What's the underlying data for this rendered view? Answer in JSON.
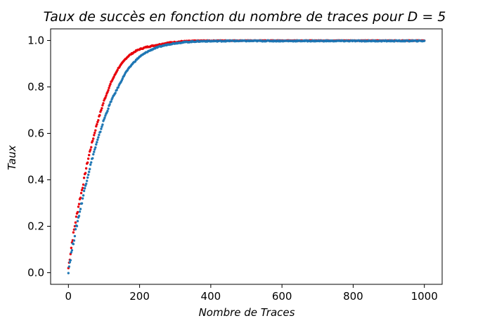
{
  "chart_data": {
    "type": "scatter",
    "title": "Taux de succès en fonction du nombre de traces pour D = 5",
    "xlabel": "Nombre de Traces",
    "ylabel": "Taux",
    "xlim": [
      -50,
      1050
    ],
    "ylim": [
      -0.05,
      1.05
    ],
    "x_ticks": [
      "0",
      "200",
      "400",
      "600",
      "800",
      "1000"
    ],
    "y_ticks": [
      "0.0",
      "0.2",
      "0.4",
      "0.6",
      "0.8",
      "1.0"
    ],
    "grid": false,
    "legend": "none",
    "series": [
      {
        "color": "#e8000b",
        "x": [
          0,
          10,
          20,
          30,
          40,
          50,
          60,
          70,
          80,
          90,
          100,
          110,
          120,
          130,
          140,
          150,
          160,
          170,
          180,
          190,
          200,
          220,
          240,
          260,
          280,
          300,
          320,
          340,
          360,
          380,
          400,
          450,
          500,
          600,
          700,
          800,
          900,
          1000
        ],
        "y": [
          0.02,
          0.13,
          0.22,
          0.3,
          0.37,
          0.45,
          0.52,
          0.58,
          0.64,
          0.69,
          0.74,
          0.78,
          0.82,
          0.85,
          0.88,
          0.9,
          0.92,
          0.935,
          0.945,
          0.955,
          0.962,
          0.972,
          0.978,
          0.984,
          0.99,
          0.993,
          0.996,
          0.997,
          0.998,
          0.999,
          0.999,
          1.0,
          1.0,
          1.0,
          1.0,
          1.0,
          1.0,
          1.0
        ]
      },
      {
        "color": "#1f77b4",
        "x": [
          0,
          10,
          20,
          30,
          40,
          50,
          60,
          70,
          80,
          90,
          100,
          110,
          120,
          130,
          140,
          150,
          160,
          170,
          180,
          190,
          200,
          220,
          240,
          260,
          280,
          300,
          320,
          340,
          360,
          380,
          400,
          450,
          500,
          600,
          700,
          800,
          900,
          1000
        ],
        "y": [
          0.01,
          0.1,
          0.18,
          0.25,
          0.32,
          0.39,
          0.45,
          0.51,
          0.56,
          0.61,
          0.66,
          0.7,
          0.74,
          0.77,
          0.8,
          0.83,
          0.86,
          0.88,
          0.9,
          0.915,
          0.93,
          0.95,
          0.965,
          0.975,
          0.983,
          0.988,
          0.992,
          0.994,
          0.996,
          0.997,
          0.997,
          0.998,
          0.998,
          0.998,
          0.998,
          0.998,
          0.998,
          0.998
        ]
      }
    ]
  }
}
